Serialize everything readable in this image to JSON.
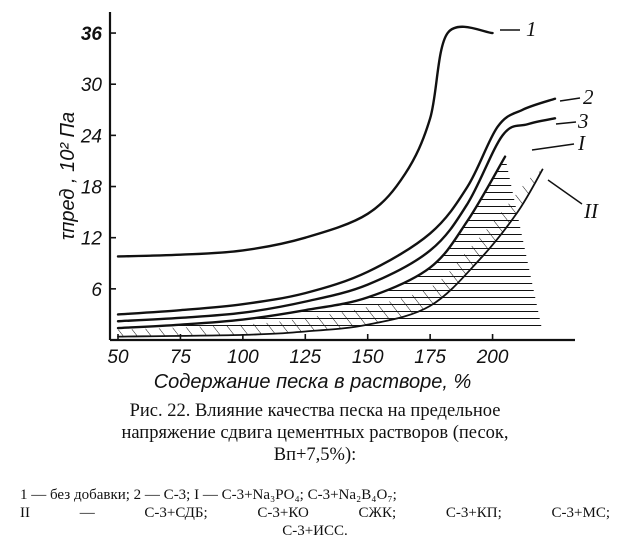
{
  "chart_data": {
    "type": "line",
    "xlabel": "Содержание песка в растворе, %",
    "ylabel": "τпред , 10² Па",
    "xlim": [
      50,
      225
    ],
    "ylim": [
      0,
      38
    ],
    "xticks": [
      50,
      75,
      100,
      125,
      150,
      175,
      200
    ],
    "yticks": [
      6,
      12,
      18,
      24,
      30,
      36
    ],
    "grid": false,
    "series": [
      {
        "name": "1",
        "x": [
          50,
          75,
          100,
          125,
          150,
          165,
          175,
          182,
          200
        ],
        "y": [
          9.8,
          10.0,
          10.5,
          12.0,
          14.8,
          19.5,
          26.0,
          36.0,
          36.0
        ]
      },
      {
        "name": "2",
        "x": [
          50,
          75,
          100,
          125,
          150,
          175,
          190,
          202,
          212,
          225
        ],
        "y": [
          3.0,
          3.5,
          4.2,
          5.5,
          8.0,
          12.5,
          18.0,
          25.0,
          27.0,
          28.3
        ]
      },
      {
        "name": "3",
        "x": [
          50,
          75,
          100,
          125,
          150,
          175,
          190,
          204,
          214,
          225
        ],
        "y": [
          2.2,
          2.6,
          3.2,
          4.5,
          6.5,
          10.5,
          16.0,
          24.0,
          25.3,
          26.0
        ]
      },
      {
        "name": "I",
        "x": [
          50,
          75,
          100,
          125,
          150,
          175,
          190,
          205
        ],
        "y": [
          1.4,
          1.8,
          2.4,
          3.5,
          5.0,
          8.5,
          14.0,
          21.5
        ]
      },
      {
        "name": "II",
        "x": [
          50,
          100,
          125,
          150,
          175,
          195,
          210,
          220
        ],
        "y": [
          0.4,
          0.6,
          1.0,
          1.8,
          4.0,
          9.5,
          15.0,
          20.0
        ]
      }
    ],
    "region_labels": [
      "I",
      "II"
    ]
  },
  "caption": {
    "title_line1": "Рис. 22. Влияние качества песка на предельное",
    "title_line2": "напряжение сдвига цементных растворов (песок,",
    "title_line3": "Bп+7,5%):",
    "legend_line1": "1 — без добавки; 2 — С-3; I — С-3+Na₃PO₄; С-3+Na₂B₄O₇;",
    "legend_line2": "II — С-3+СДБ; С-3+КО СЖК; С-3+КП; С-3+МС;",
    "legend_line3": "С-3+ИСС."
  }
}
